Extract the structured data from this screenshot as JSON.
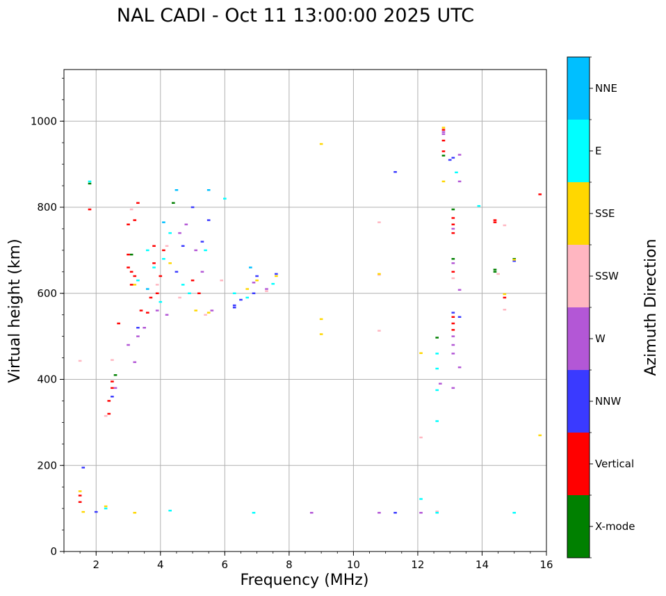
{
  "chart_data": {
    "type": "scatter",
    "title": "NAL CADI - Oct 11 13:00:00 2025 UTC",
    "xlabel": "Frequency (MHz)",
    "ylabel": "Virtual height (km)",
    "xlim": [
      1,
      16
    ],
    "ylim": [
      0,
      1120
    ],
    "xticks": [
      "2",
      "4",
      "6",
      "8",
      "10",
      "12",
      "14",
      "16"
    ],
    "yticks": [
      "0",
      "200",
      "400",
      "600",
      "800",
      "1000"
    ],
    "grid": true,
    "colorbar": {
      "label": "Azimuth Direction",
      "categories": [
        {
          "name": "X-mode",
          "color": "#008000"
        },
        {
          "name": "Vertical",
          "color": "#ff0000"
        },
        {
          "name": "NNW",
          "color": "#3a3aff"
        },
        {
          "name": "W",
          "color": "#b357d6"
        },
        {
          "name": "SSW",
          "color": "#ffb6c1"
        },
        {
          "name": "SSE",
          "color": "#ffd700"
        },
        {
          "name": "E",
          "color": "#00ffff"
        },
        {
          "name": "NNE",
          "color": "#00bfff"
        }
      ]
    },
    "series": [
      {
        "name": "X-mode",
        "points": [
          [
            1.8,
            855
          ],
          [
            2.6,
            410
          ],
          [
            4.4,
            810
          ],
          [
            12.6,
            497
          ],
          [
            13.1,
            680
          ],
          [
            13.1,
            795
          ],
          [
            14.4,
            650
          ],
          [
            14.4,
            655
          ],
          [
            12.8,
            920
          ],
          [
            15,
            680
          ],
          [
            3.1,
            690
          ]
        ]
      },
      {
        "name": "Vertical",
        "points": [
          [
            1.5,
            115
          ],
          [
            1.5,
            130
          ],
          [
            1.8,
            795
          ],
          [
            2.4,
            320
          ],
          [
            2.4,
            350
          ],
          [
            2.5,
            380
          ],
          [
            2.5,
            395
          ],
          [
            2.7,
            530
          ],
          [
            3.0,
            660
          ],
          [
            3.0,
            690
          ],
          [
            3.0,
            760
          ],
          [
            3.1,
            620
          ],
          [
            3.1,
            650
          ],
          [
            3.2,
            640
          ],
          [
            3.2,
            770
          ],
          [
            3.3,
            810
          ],
          [
            3.4,
            560
          ],
          [
            3.6,
            555
          ],
          [
            3.7,
            590
          ],
          [
            3.8,
            670
          ],
          [
            3.8,
            710
          ],
          [
            3.9,
            600
          ],
          [
            4.0,
            640
          ],
          [
            4.1,
            700
          ],
          [
            5.0,
            630
          ],
          [
            5.2,
            600
          ],
          [
            12.8,
            980
          ],
          [
            12.8,
            955
          ],
          [
            13.1,
            740
          ],
          [
            13.1,
            760
          ],
          [
            13.1,
            775
          ],
          [
            13.1,
            650
          ],
          [
            13.1,
            530
          ],
          [
            13.1,
            545
          ],
          [
            13.1,
            515
          ],
          [
            14.4,
            770
          ],
          [
            14.4,
            765
          ],
          [
            14.7,
            590
          ],
          [
            15.8,
            830
          ],
          [
            12.8,
            930
          ]
        ]
      },
      {
        "name": "NNW",
        "points": [
          [
            1.6,
            195
          ],
          [
            2.0,
            92
          ],
          [
            2.5,
            360
          ],
          [
            3.3,
            520
          ],
          [
            4.5,
            650
          ],
          [
            4.7,
            710
          ],
          [
            5.0,
            800
          ],
          [
            5.3,
            720
          ],
          [
            5.5,
            770
          ],
          [
            6.3,
            572
          ],
          [
            6.3,
            567
          ],
          [
            6.5,
            585
          ],
          [
            6.9,
            600
          ],
          [
            7.0,
            640
          ],
          [
            7.6,
            645
          ],
          [
            11.3,
            882
          ],
          [
            11.3,
            90
          ],
          [
            13.1,
            555
          ],
          [
            13.3,
            545
          ],
          [
            15,
            675
          ],
          [
            13.1,
            915
          ],
          [
            13.0,
            910
          ]
        ]
      },
      {
        "name": "W",
        "points": [
          [
            2.6,
            380
          ],
          [
            3.0,
            480
          ],
          [
            3.2,
            440
          ],
          [
            3.3,
            500
          ],
          [
            3.5,
            520
          ],
          [
            3.9,
            560
          ],
          [
            4.2,
            550
          ],
          [
            4.6,
            740
          ],
          [
            4.8,
            760
          ],
          [
            5.1,
            700
          ],
          [
            5.3,
            650
          ],
          [
            5.6,
            560
          ],
          [
            6.9,
            625
          ],
          [
            7.3,
            610
          ],
          [
            8.7,
            90
          ],
          [
            10.8,
            90
          ],
          [
            12.1,
            90
          ],
          [
            12.7,
            390
          ],
          [
            12.8,
            970
          ],
          [
            12.8,
            975
          ],
          [
            13.1,
            460
          ],
          [
            13.1,
            480
          ],
          [
            13.1,
            500
          ],
          [
            13.1,
            670
          ],
          [
            13.1,
            750
          ],
          [
            13.3,
            608
          ],
          [
            13.3,
            428
          ],
          [
            13.3,
            922
          ],
          [
            13.3,
            860
          ],
          [
            13.1,
            380
          ]
        ]
      },
      {
        "name": "SSW",
        "points": [
          [
            1.5,
            443
          ],
          [
            2.3,
            315
          ],
          [
            2.5,
            445
          ],
          [
            3.1,
            795
          ],
          [
            3.9,
            620
          ],
          [
            4.2,
            710
          ],
          [
            4.6,
            590
          ],
          [
            5.4,
            550
          ],
          [
            5.9,
            630
          ],
          [
            7.3,
            605
          ],
          [
            10.8,
            765
          ],
          [
            10.8,
            513
          ],
          [
            10.8,
            643
          ],
          [
            12.1,
            265
          ],
          [
            12.6,
            93
          ],
          [
            14.5,
            645
          ],
          [
            14.7,
            562
          ],
          [
            14.7,
            758
          ],
          [
            13.1,
            635
          ]
        ]
      },
      {
        "name": "SSE",
        "points": [
          [
            1.5,
            140
          ],
          [
            1.6,
            92
          ],
          [
            2.3,
            105
          ],
          [
            3.2,
            90
          ],
          [
            3.2,
            620
          ],
          [
            4.3,
            670
          ],
          [
            5.1,
            560
          ],
          [
            5.5,
            555
          ],
          [
            6.7,
            610
          ],
          [
            7.0,
            630
          ],
          [
            7.6,
            640
          ],
          [
            9.0,
            947
          ],
          [
            9.0,
            540
          ],
          [
            9.0,
            505
          ],
          [
            10.8,
            645
          ],
          [
            12.1,
            461
          ],
          [
            12.8,
            860
          ],
          [
            12.8,
            985
          ],
          [
            14.7,
            598
          ],
          [
            15,
            678
          ],
          [
            15.8,
            270
          ]
        ]
      },
      {
        "name": "E",
        "points": [
          [
            1.8,
            860
          ],
          [
            2.3,
            100
          ],
          [
            3.3,
            630
          ],
          [
            3.6,
            700
          ],
          [
            3.8,
            660
          ],
          [
            4.0,
            580
          ],
          [
            4.1,
            680
          ],
          [
            4.3,
            740
          ],
          [
            4.3,
            95
          ],
          [
            4.7,
            620
          ],
          [
            4.9,
            600
          ],
          [
            5.4,
            700
          ],
          [
            6.0,
            820
          ],
          [
            6.3,
            600
          ],
          [
            6.7,
            590
          ],
          [
            6.9,
            90
          ],
          [
            7.5,
            622
          ],
          [
            12.1,
            122
          ],
          [
            12.6,
            425
          ],
          [
            12.6,
            460
          ],
          [
            12.6,
            303
          ],
          [
            12.6,
            375
          ],
          [
            12.6,
            90
          ],
          [
            13.9,
            803
          ],
          [
            15.0,
            90
          ],
          [
            13.2,
            881
          ]
        ]
      },
      {
        "name": "NNE",
        "points": [
          [
            3.6,
            610
          ],
          [
            4.1,
            765
          ],
          [
            4.5,
            840
          ],
          [
            5.5,
            840
          ],
          [
            6.8,
            660
          ]
        ]
      }
    ]
  }
}
